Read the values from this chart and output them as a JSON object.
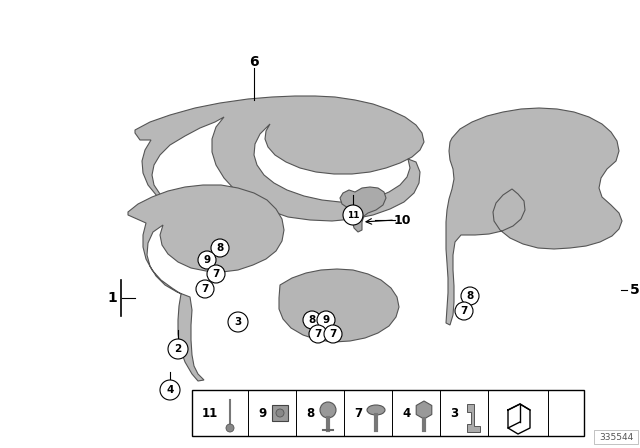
{
  "bg_color": "#ffffff",
  "part_number": "335544",
  "panel_color": "#b8b8b8",
  "panel_edge": "#555555",
  "panel_lw": 0.8,
  "fig_width": 6.4,
  "fig_height": 4.48,
  "dpi": 100
}
